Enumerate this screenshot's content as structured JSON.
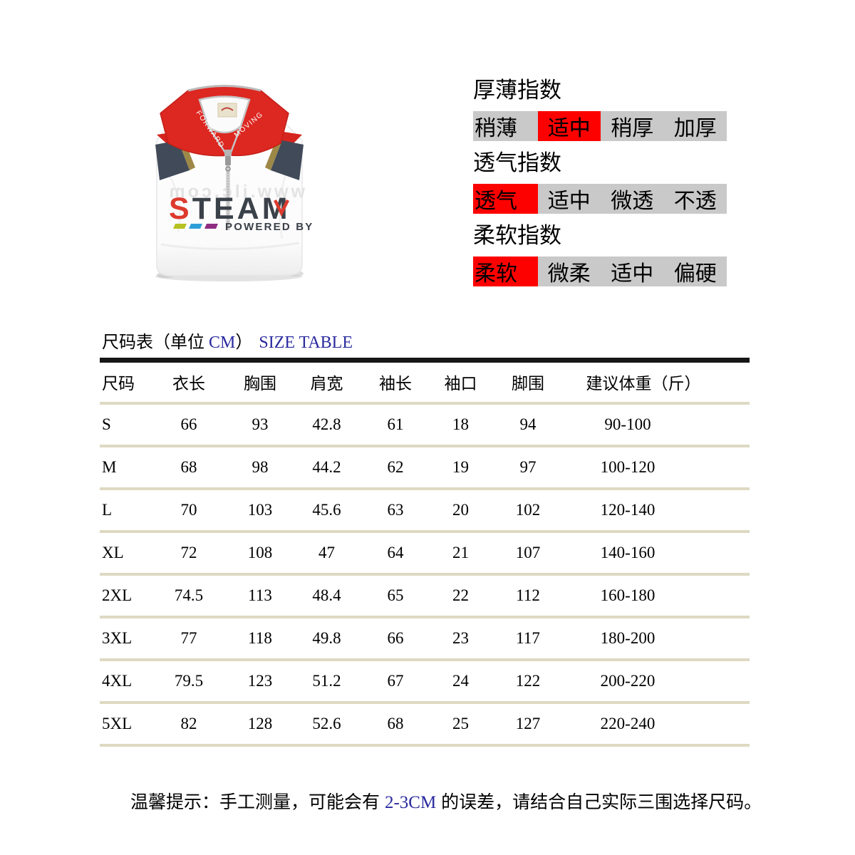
{
  "product": {
    "collar_left": "FORWARD",
    "collar_right": "MOVING",
    "logo_first": "S",
    "logo_rest": "TEAM",
    "logo_sub": "POWERED BY",
    "watermark": "www.jlc.com"
  },
  "indices": [
    {
      "title": "厚薄指数",
      "options": [
        "稍薄",
        "适中",
        "稍厚",
        "加厚"
      ],
      "selected": 1
    },
    {
      "title": "透气指数",
      "options": [
        "透气",
        "适中",
        "微透",
        "不透"
      ],
      "selected": 0
    },
    {
      "title": "柔软指数",
      "options": [
        "柔软",
        "微柔",
        "适中",
        "偏硬"
      ],
      "selected": 0
    }
  ],
  "size_table": {
    "title": {
      "prefix": "尺码表（单位 ",
      "cm": "CM",
      "suffix": "）",
      "en": "SIZE TABLE"
    },
    "headers": [
      "尺码",
      "衣长",
      "胸围",
      "肩宽",
      "袖长",
      "袖口",
      "脚围",
      "建议体重（斤）"
    ],
    "rows": [
      [
        "S",
        "66",
        "93",
        "42.8",
        "61",
        "18",
        "94",
        "90-100"
      ],
      [
        "M",
        "68",
        "98",
        "44.2",
        "62",
        "19",
        "97",
        "100-120"
      ],
      [
        "L",
        "70",
        "103",
        "45.6",
        "63",
        "20",
        "102",
        "120-140"
      ],
      [
        "XL",
        "72",
        "108",
        "47",
        "64",
        "21",
        "107",
        "140-160"
      ],
      [
        "2XL",
        "74.5",
        "113",
        "48.4",
        "65",
        "22",
        "112",
        "160-180"
      ],
      [
        "3XL",
        "77",
        "118",
        "49.8",
        "66",
        "23",
        "117",
        "180-200"
      ],
      [
        "4XL",
        "79.5",
        "123",
        "51.2",
        "67",
        "24",
        "122",
        "200-220"
      ],
      [
        "5XL",
        "82",
        "128",
        "52.6",
        "68",
        "25",
        "127",
        "220-240"
      ]
    ]
  },
  "note": {
    "prefix": "温馨提示：手工测量，可能会有 ",
    "highlight": "2-3CM",
    "suffix": " 的误差，请结合自己实际三围选择尺码。"
  },
  "colors": {
    "index_bar_bg": "#c9c9c9",
    "index_highlight": "#fd0100",
    "navy_text": "#2a2aa0",
    "row_separator": "#ded9c2",
    "table_top_line": "#161616",
    "collar_red": "#dd2721",
    "logo_red": "#dd3a2e",
    "logo_dark": "#3b4149",
    "dash_green": "#b6c222",
    "dash_blue": "#2f9fd9",
    "dash_purple": "#8e2d80",
    "shoulder_navy": "#414a59",
    "shoulder_gold": "#9d8847"
  }
}
